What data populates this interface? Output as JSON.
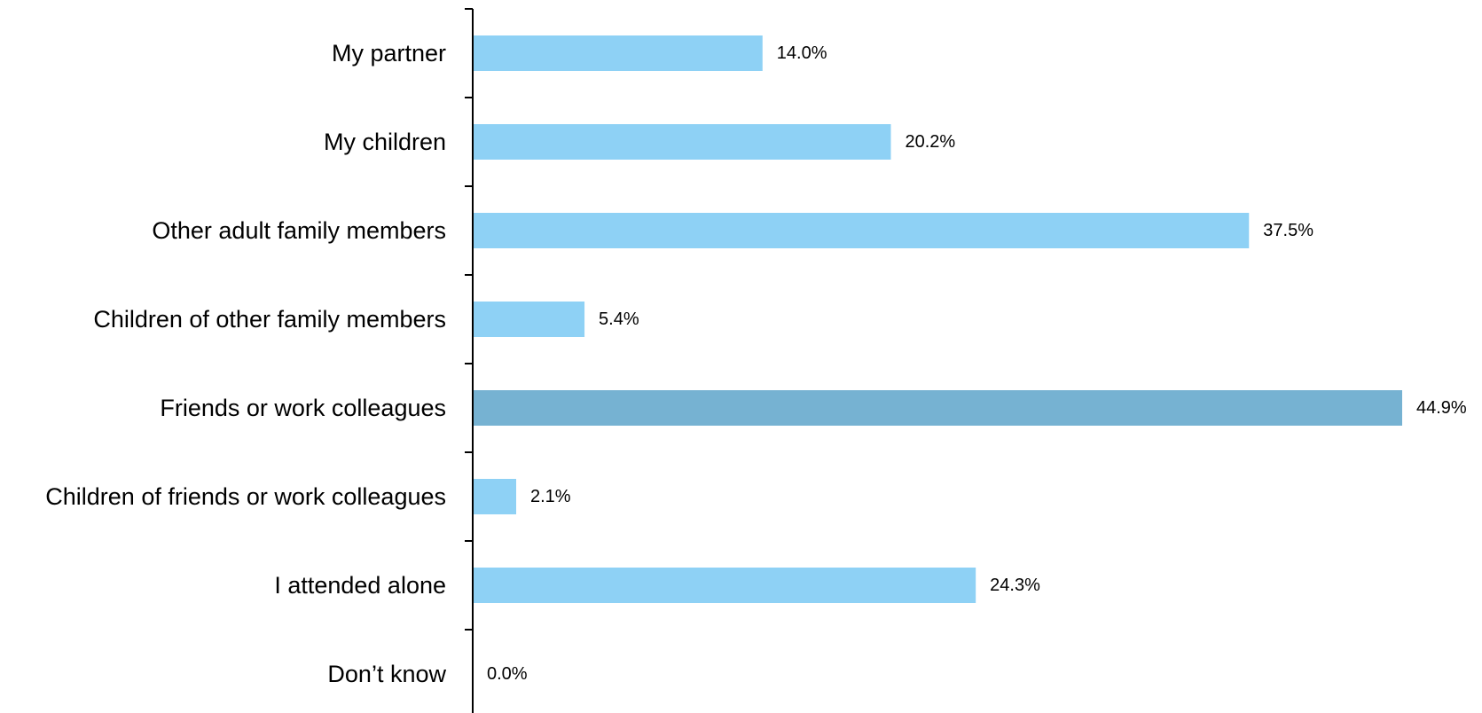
{
  "chart_data": {
    "type": "bar",
    "orientation": "horizontal",
    "categories": [
      "My partner",
      "My children",
      "Other adult family members",
      "Children of other family members",
      "Friends or work colleagues",
      "Children of friends or work colleagues",
      "I attended alone",
      "Don’t know"
    ],
    "values": [
      14.0,
      20.2,
      37.5,
      5.4,
      44.9,
      2.1,
      24.3,
      0.0
    ],
    "value_labels": [
      "14.0%",
      "20.2%",
      "37.5%",
      "5.4%",
      "44.9%",
      "2.1%",
      "24.3%",
      "0.0%"
    ],
    "value_unit": "%",
    "xlim": [
      0,
      44.9
    ],
    "highlight_category": "Friends or work colleagues",
    "colors": {
      "bar": "#8ED1F5",
      "highlight": "#76B2D2",
      "axis": "#000000"
    },
    "title": "",
    "xlabel": "",
    "ylabel": "",
    "legend": "none",
    "grid": false
  }
}
